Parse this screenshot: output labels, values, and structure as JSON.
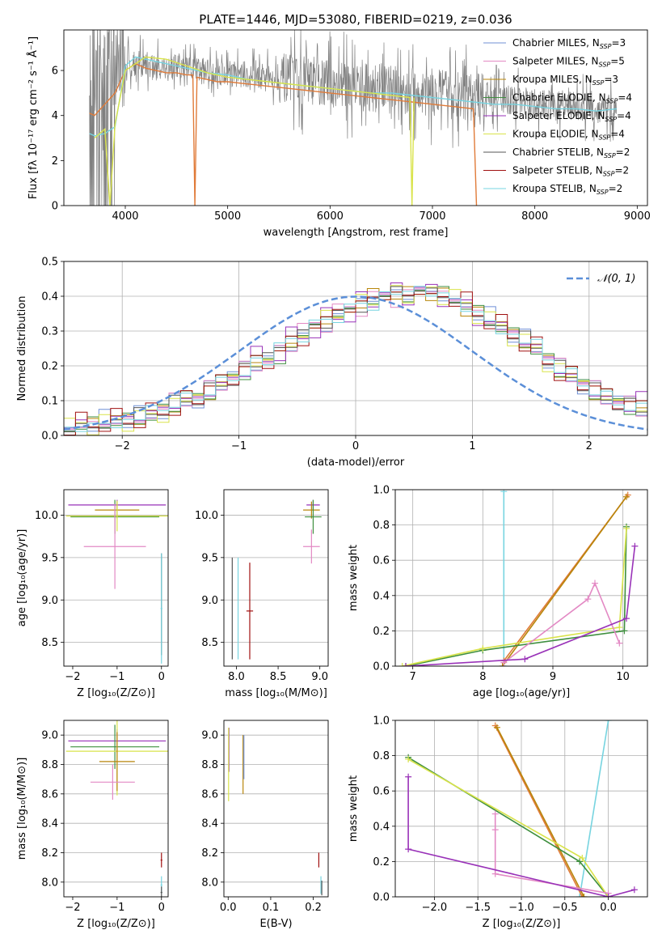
{
  "figure": {
    "title": "PLATE=1446, MJD=53080, FIBERID=0219, z=0.036"
  },
  "colors": {
    "Chabrier MILES": "#6f8fd6",
    "Salpeter MILES": "#e389c4",
    "Kroupa MILES": "#b8860b",
    "Chabrier ELODIE": "#3f8f3f",
    "Salpeter ELODIE": "#9932b8",
    "Kroupa ELODIE": "#d9e34a",
    "Chabrier STELIB": "#555555",
    "Salpeter STELIB": "#a01010",
    "Kroupa STELIB": "#77d4e0",
    "data": "#808080",
    "orange": "#e07b39"
  },
  "chart_data": [
    {
      "id": "spectrum",
      "type": "line",
      "xlabel": "wavelength [Angstrom, rest frame]",
      "ylabel": "Flux [fλ 10⁻¹⁷ erg cm⁻² s⁻¹ Å⁻¹]",
      "xlim": [
        3400,
        9100
      ],
      "ylim": [
        0,
        7.8
      ],
      "xticks": [
        4000,
        5000,
        6000,
        7000,
        8000,
        9000
      ],
      "yticks": [
        0,
        2,
        4,
        6
      ],
      "legend_position": "top-right",
      "legend": [
        {
          "base": "Chabrier MILES, N",
          "sub": "SSP",
          "tail": "=3",
          "color": "Chabrier MILES"
        },
        {
          "base": "Salpeter MILES, N",
          "sub": "SSP",
          "tail": "=5",
          "color": "Salpeter MILES"
        },
        {
          "base": "Kroupa MILES, N",
          "sub": "SSP",
          "tail": "=3",
          "color": "Kroupa MILES"
        },
        {
          "base": "Chabrier ELODIE, N",
          "sub": "SSP",
          "tail": "=4",
          "color": "Chabrier ELODIE"
        },
        {
          "base": "Salpeter ELODIE, N",
          "sub": "SSP",
          "tail": "=4",
          "color": "Salpeter ELODIE"
        },
        {
          "base": "Kroupa ELODIE, N",
          "sub": "SSP",
          "tail": "=4",
          "color": "Kroupa ELODIE"
        },
        {
          "base": "Chabrier STELIB, N",
          "sub": "SSP",
          "tail": "=2",
          "color": "Chabrier STELIB"
        },
        {
          "base": "Salpeter STELIB, N",
          "sub": "SSP",
          "tail": "=2",
          "color": "Salpeter STELIB"
        },
        {
          "base": "Kroupa STELIB, N",
          "sub": "SSP",
          "tail": "=2",
          "color": "Kroupa STELIB"
        }
      ],
      "series": [
        {
          "color": "orange",
          "x": [
            3650,
            3700,
            3800,
            3900,
            4000,
            4100,
            4200,
            4300,
            4400,
            4500,
            4600,
            4660,
            4680,
            4700,
            4800,
            4900,
            5000,
            5200,
            5400,
            5600,
            5800,
            6000,
            6200,
            6400,
            6600,
            6800,
            7000,
            7200,
            7400,
            7430
          ],
          "y": [
            4.1,
            4.0,
            4.5,
            5.0,
            6.0,
            6.3,
            6.1,
            6.0,
            5.9,
            5.9,
            5.8,
            5.8,
            0,
            5.7,
            5.6,
            5.5,
            5.5,
            5.4,
            5.3,
            5.2,
            5.1,
            5.0,
            4.9,
            4.8,
            4.7,
            4.6,
            4.5,
            4.4,
            4.3,
            0
          ]
        },
        {
          "color": "Kroupa STELIB",
          "x": [
            3650,
            3700,
            3800,
            3900,
            4000,
            4100,
            4200,
            4300,
            4400,
            4500,
            4600,
            4800,
            5000,
            5200,
            5400,
            5600,
            5800,
            6000,
            6200,
            6400,
            6600,
            6800,
            7000,
            7200,
            7400,
            7600,
            7800,
            8000,
            8200,
            8400,
            8600,
            8800
          ],
          "y": [
            3.2,
            3.1,
            3.2,
            3.5,
            6.2,
            6.6,
            6.5,
            6.4,
            6.3,
            6.2,
            6.1,
            5.9,
            5.8,
            5.6,
            5.5,
            5.4,
            5.3,
            5.2,
            5.1,
            5.0,
            5.0,
            4.9,
            4.8,
            4.7,
            4.6,
            4.5,
            4.5,
            4.4,
            4.3,
            4.3,
            4.2,
            4.3
          ]
        },
        {
          "color": "Kroupa ELODIE",
          "x": [
            3700,
            3800,
            3850,
            3900,
            4000,
            4200,
            4400,
            4600,
            4800,
            5000,
            5400,
            5800,
            6000,
            6400,
            6780,
            6800,
            6820
          ],
          "y": [
            3.0,
            3.4,
            0,
            3.6,
            6.0,
            6.6,
            6.5,
            6.2,
            5.9,
            5.7,
            5.5,
            5.3,
            5.2,
            5.0,
            4.8,
            0,
            4.8
          ]
        }
      ]
    },
    {
      "id": "residuals",
      "type": "histogram",
      "xlabel": "(data-model)/error",
      "ylabel": "Normed distribution",
      "xlim": [
        -2.5,
        2.5
      ],
      "ylim": [
        0,
        0.5
      ],
      "xticks": [
        -2,
        -1,
        0,
        1,
        2
      ],
      "yticks": [
        0.0,
        0.1,
        0.2,
        0.3,
        0.4,
        0.5
      ],
      "grid": true,
      "legend_position": "top-right",
      "normal_label": "𝒩(0, 1)",
      "bin_width": 0.1,
      "bins_start": -2.5,
      "base_values": [
        0.02,
        0.025,
        0.03,
        0.035,
        0.04,
        0.045,
        0.05,
        0.06,
        0.075,
        0.09,
        0.1,
        0.11,
        0.13,
        0.15,
        0.17,
        0.19,
        0.21,
        0.22,
        0.24,
        0.27,
        0.29,
        0.31,
        0.33,
        0.35,
        0.36,
        0.38,
        0.39,
        0.4,
        0.41,
        0.4,
        0.42,
        0.41,
        0.4,
        0.39,
        0.37,
        0.35,
        0.33,
        0.31,
        0.29,
        0.27,
        0.25,
        0.22,
        0.19,
        0.17,
        0.15,
        0.13,
        0.11,
        0.1,
        0.09,
        0.08
      ],
      "series_offsets": [
        0.018,
        -0.02,
        0.01,
        -0.012,
        0.024,
        -0.015,
        0.008,
        0.02,
        -0.008
      ]
    },
    {
      "id": "age-vs-Z",
      "type": "errorbar",
      "xlabel": "Z [log₁₀(Z/Z⊙)]",
      "ylabel": "age  [log₁₀(age/yr)]",
      "xlim": [
        -2.2,
        0.15
      ],
      "ylim": [
        8.22,
        10.3
      ],
      "xticks": [
        -2,
        -1,
        0
      ],
      "yticks": [
        8.5,
        9.0,
        9.5,
        10.0
      ],
      "points": [
        {
          "color": "Salpeter ELODIE",
          "x": -1.0,
          "xerr": 1.1,
          "y": 10.12,
          "yerr": 0.06
        },
        {
          "color": "Kroupa MILES",
          "x": -1.0,
          "xerr": 0.5,
          "y": 10.06,
          "yerr": 0.1
        },
        {
          "color": "Chabrier ELODIE",
          "x": -1.05,
          "xerr": 1.0,
          "y": 9.98,
          "yerr": 0.2
        },
        {
          "color": "Kroupa ELODIE",
          "x": -1.0,
          "xerr": 1.15,
          "y": 9.99,
          "yerr": 0.18
        },
        {
          "color": "Salpeter MILES",
          "x": -1.05,
          "xerr": 0.7,
          "y": 9.63,
          "yerr": 0.5
        },
        {
          "color": "Chabrier STELIB",
          "x": 0.0,
          "xerr": 0.0,
          "y": 8.95,
          "yerr": 0.6
        },
        {
          "color": "Kroupa STELIB",
          "x": 0.0,
          "xerr": 0.02,
          "y": 8.9,
          "yerr": 0.65
        }
      ]
    },
    {
      "id": "age-vs-mass",
      "type": "errorbar",
      "xlabel": "mass [log₁₀(M/M⊙)]",
      "ylabel": "",
      "xlim": [
        7.85,
        9.1
      ],
      "ylim": [
        8.22,
        10.3
      ],
      "xticks": [
        8.0,
        8.5,
        9.0
      ],
      "yticks": [
        8.5,
        9.0,
        9.5,
        10.0
      ],
      "points": [
        {
          "color": "Salpeter ELODIE",
          "x": 8.92,
          "xerr": 0.08,
          "y": 10.12,
          "yerr": 0.06
        },
        {
          "color": "Kroupa MILES",
          "x": 8.9,
          "xerr": 0.1,
          "y": 10.06,
          "yerr": 0.1
        },
        {
          "color": "Chabrier ELODIE",
          "x": 8.92,
          "xerr": 0.1,
          "y": 9.98,
          "yerr": 0.2
        },
        {
          "color": "Salpeter MILES",
          "x": 8.9,
          "xerr": 0.1,
          "y": 9.63,
          "yerr": 0.2
        },
        {
          "color": "Chabrier STELIB",
          "x": 7.95,
          "xerr": 0.0,
          "y": 8.9,
          "yerr": 0.6
        },
        {
          "color": "Kroupa STELIB",
          "x": 8.02,
          "xerr": 0.0,
          "y": 8.9,
          "yerr": 0.6
        },
        {
          "color": "Salpeter STELIB",
          "x": 8.16,
          "xerr": 0.04,
          "y": 8.87,
          "yerr": 0.57
        }
      ]
    },
    {
      "id": "massweight-vs-age",
      "type": "line",
      "xlabel": "age  [log₁₀(age/yr)]",
      "ylabel": "mass weight",
      "xlim": [
        6.75,
        10.35
      ],
      "ylim": [
        0,
        1.0
      ],
      "xticks": [
        7,
        8,
        9,
        10
      ],
      "yticks": [
        0.0,
        0.2,
        0.4,
        0.6,
        0.8,
        1.0
      ],
      "grid": true,
      "series": [
        {
          "color": "Kroupa STELIB",
          "x": [
            8.3,
            8.3
          ],
          "y": [
            0.0,
            0.99
          ]
        },
        {
          "color": "orange",
          "x": [
            8.3,
            10.07
          ],
          "y": [
            0.03,
            0.97
          ]
        },
        {
          "color": "Kroupa MILES",
          "x": [
            8.28,
            10.05
          ],
          "y": [
            0.0,
            0.96
          ]
        },
        {
          "color": "Chabrier ELODIE",
          "x": [
            6.9,
            8.0,
            10.02,
            10.05
          ],
          "y": [
            0.0,
            0.09,
            0.2,
            0.79
          ]
        },
        {
          "color": "Kroupa ELODIE",
          "x": [
            6.85,
            8.0,
            9.95,
            10.05
          ],
          "y": [
            0.0,
            0.1,
            0.22,
            0.78
          ]
        },
        {
          "color": "Salpeter MILES",
          "x": [
            8.3,
            9.5,
            9.6,
            9.95
          ],
          "y": [
            0.02,
            0.38,
            0.47,
            0.13
          ]
        },
        {
          "color": "Salpeter ELODIE",
          "x": [
            6.9,
            8.6,
            10.05,
            10.17
          ],
          "y": [
            0.0,
            0.04,
            0.27,
            0.68
          ]
        }
      ]
    },
    {
      "id": "mass-vs-Z",
      "type": "errorbar",
      "xlabel": "Z [log₁₀(Z/Z⊙)]",
      "ylabel": "mass [log₁₀(M/M⊙)]",
      "xlim": [
        -2.2,
        0.15
      ],
      "ylim": [
        7.9,
        9.1
      ],
      "xticks": [
        -2,
        -1,
        0
      ],
      "yticks": [
        8.0,
        8.2,
        8.4,
        8.6,
        8.8,
        9.0
      ],
      "points": [
        {
          "color": "Salpeter ELODIE",
          "x": -1.0,
          "xerr": 1.1,
          "y": 8.96,
          "yerr": 0.08
        },
        {
          "color": "Chabrier ELODIE",
          "x": -1.05,
          "xerr": 1.0,
          "y": 8.92,
          "yerr": 0.15
        },
        {
          "color": "Kroupa ELODIE",
          "x": -1.0,
          "xerr": 1.15,
          "y": 8.89,
          "yerr": 0.3
        },
        {
          "color": "Kroupa MILES",
          "x": -1.0,
          "xerr": 0.4,
          "y": 8.82,
          "yerr": 0.2
        },
        {
          "color": "Salpeter MILES",
          "x": -1.1,
          "xerr": 0.5,
          "y": 8.68,
          "yerr": 0.12
        },
        {
          "color": "Salpeter STELIB",
          "x": 0.0,
          "xerr": 0.02,
          "y": 8.15,
          "yerr": 0.05
        },
        {
          "color": "Kroupa STELIB",
          "x": 0.0,
          "xerr": 0.02,
          "y": 7.98,
          "yerr": 0.06
        },
        {
          "color": "Chabrier STELIB",
          "x": 0.0,
          "xerr": 0.02,
          "y": 7.93,
          "yerr": 0.04
        }
      ]
    },
    {
      "id": "mass-vs-ebv",
      "type": "errorbar",
      "xlabel": "E(B-V)",
      "ylabel": "",
      "xlim": [
        -0.01,
        0.235
      ],
      "ylim": [
        7.9,
        9.1
      ],
      "xticks": [
        0.0,
        0.1,
        0.2
      ],
      "yticks": [
        8.0,
        8.2,
        8.4,
        8.6,
        8.8,
        9.0
      ],
      "points": [
        {
          "color": "Salpeter ELODIE",
          "x": 0.002,
          "xerr": 0,
          "y": 8.9,
          "yerr": 0.15
        },
        {
          "color": "Kroupa ELODIE",
          "x": 0.001,
          "xerr": 0,
          "y": 8.8,
          "yerr": 0.25
        },
        {
          "color": "Kroupa MILES",
          "x": 0.035,
          "xerr": 0,
          "y": 8.8,
          "yerr": 0.2
        },
        {
          "color": "Chabrier MILES",
          "x": 0.037,
          "xerr": 0,
          "y": 8.85,
          "yerr": 0.15
        },
        {
          "color": "Salpeter STELIB",
          "x": 0.213,
          "xerr": 0,
          "y": 8.15,
          "yerr": 0.05
        },
        {
          "color": "Kroupa STELIB",
          "x": 0.218,
          "xerr": 0,
          "y": 7.98,
          "yerr": 0.06
        },
        {
          "color": "Chabrier STELIB",
          "x": 0.22,
          "xerr": 0,
          "y": 7.96,
          "yerr": 0.05
        }
      ]
    },
    {
      "id": "massweight-vs-Z",
      "type": "line",
      "xlabel": "Z [log₁₀(Z/Z⊙)]",
      "ylabel": "mass weight",
      "xlim": [
        -2.45,
        0.45
      ],
      "ylim": [
        0,
        1.0
      ],
      "xticks": [
        -2.0,
        -1.5,
        -1.0,
        -0.5,
        0.0
      ],
      "yticks": [
        0.0,
        0.2,
        0.4,
        0.6,
        0.8,
        1.0
      ],
      "grid": true,
      "series": [
        {
          "color": "Kroupa STELIB",
          "x": [
            -0.33,
            0.0
          ],
          "y": [
            0.0,
            1.0
          ]
        },
        {
          "color": "orange",
          "x": [
            -1.3,
            -0.3
          ],
          "y": [
            0.97,
            0.0
          ]
        },
        {
          "color": "Kroupa MILES",
          "x": [
            -1.28,
            -0.28
          ],
          "y": [
            0.96,
            0.0
          ]
        },
        {
          "color": "Chabrier ELODIE",
          "x": [
            -2.3,
            -0.33,
            0.0
          ],
          "y": [
            0.79,
            0.2,
            0.0
          ]
        },
        {
          "color": "Kroupa ELODIE",
          "x": [
            -2.3,
            -0.3,
            0.0
          ],
          "y": [
            0.78,
            0.22,
            0.0
          ]
        },
        {
          "color": "Salpeter MILES",
          "x": [
            -1.3,
            -1.3,
            -1.3,
            0.0
          ],
          "y": [
            0.47,
            0.38,
            0.13,
            0.02
          ]
        },
        {
          "color": "Salpeter ELODIE",
          "x": [
            -2.3,
            -2.3,
            0.0,
            0.3
          ],
          "y": [
            0.68,
            0.27,
            0.0,
            0.04
          ]
        }
      ]
    }
  ]
}
